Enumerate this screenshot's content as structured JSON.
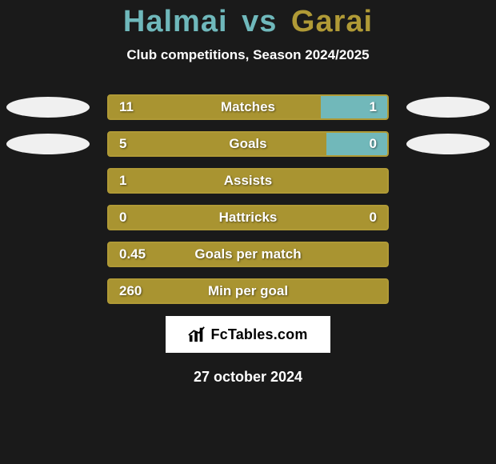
{
  "title": {
    "player1": "Halmai",
    "vs": "vs",
    "player2": "Garai",
    "color1": "#6fb8bb",
    "color2": "#b09a36"
  },
  "subtitle": "Club competitions, Season 2024/2025",
  "colors": {
    "left_bar": "#a99431",
    "right_bar": "#71b8ba",
    "outline": "#b09a36",
    "avatar": "#f0f0f0",
    "background": "#1a1a1a",
    "text": "#ffffff"
  },
  "rows": [
    {
      "label": "Matches",
      "left": "11",
      "right": "1",
      "left_pct": 76,
      "right_pct": 24,
      "show_avatars": true,
      "show_right_val": true
    },
    {
      "label": "Goals",
      "left": "5",
      "right": "0",
      "left_pct": 78,
      "right_pct": 22,
      "show_avatars": true,
      "show_right_val": true
    },
    {
      "label": "Assists",
      "left": "1",
      "right": "",
      "left_pct": 100,
      "right_pct": 0,
      "show_avatars": false,
      "show_right_val": false
    },
    {
      "label": "Hattricks",
      "left": "0",
      "right": "0",
      "left_pct": 100,
      "right_pct": 0,
      "show_avatars": false,
      "show_right_val": true
    },
    {
      "label": "Goals per match",
      "left": "0.45",
      "right": "",
      "left_pct": 100,
      "right_pct": 0,
      "show_avatars": false,
      "show_right_val": false
    },
    {
      "label": "Min per goal",
      "left": "260",
      "right": "",
      "left_pct": 100,
      "right_pct": 0,
      "show_avatars": false,
      "show_right_val": false
    }
  ],
  "logo": {
    "text": "FcTables.com"
  },
  "date": "27 october 2024"
}
